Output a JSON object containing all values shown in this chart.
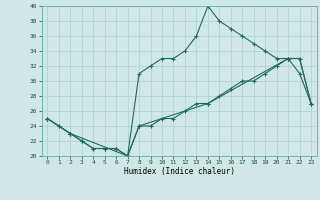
{
  "xlabel": "Humidex (Indice chaleur)",
  "background_color": "#cfe8e5",
  "line_color": "#1e6b5e",
  "grid_color": "#afd0cc",
  "xlim": [
    -0.5,
    23.5
  ],
  "ylim": [
    20,
    40
  ],
  "xticks": [
    0,
    1,
    2,
    3,
    4,
    5,
    6,
    7,
    8,
    9,
    10,
    11,
    12,
    13,
    14,
    15,
    16,
    17,
    18,
    19,
    20,
    21,
    22,
    23
  ],
  "yticks": [
    20,
    22,
    24,
    26,
    28,
    30,
    32,
    34,
    36,
    38,
    40
  ],
  "line1_x": [
    0,
    1,
    2,
    3,
    4,
    5,
    6,
    7,
    8,
    9,
    10,
    11,
    12,
    13,
    14,
    15,
    16,
    17,
    18,
    19,
    20,
    21,
    22,
    23
  ],
  "line1_y": [
    25,
    24,
    23,
    22,
    21,
    21,
    21,
    20,
    31,
    32,
    33,
    33,
    34,
    36,
    40,
    38,
    37,
    36,
    35,
    34,
    33,
    33,
    31,
    27
  ],
  "line2_x": [
    0,
    1,
    2,
    3,
    4,
    5,
    6,
    7,
    8,
    9,
    10,
    11,
    12,
    13,
    14,
    15,
    16,
    17,
    18,
    19,
    20,
    21,
    22,
    23
  ],
  "line2_y": [
    25,
    24,
    23,
    22,
    21,
    21,
    21,
    20,
    24,
    24,
    25,
    25,
    26,
    27,
    27,
    28,
    29,
    30,
    30,
    31,
    32,
    33,
    33,
    27
  ],
  "line3_x": [
    0,
    2,
    7,
    8,
    14,
    21,
    22,
    23
  ],
  "line3_y": [
    25,
    23,
    20,
    24,
    27,
    33,
    33,
    27
  ]
}
